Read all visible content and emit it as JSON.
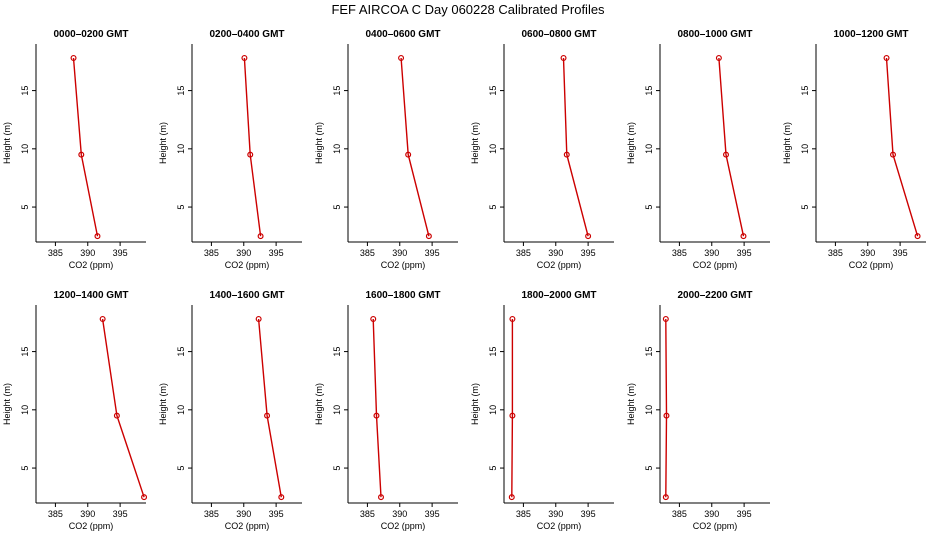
{
  "figure": {
    "title": "FEF AIRCOA C  Day 060228  Calibrated Profiles"
  },
  "colors": {
    "line": "#cc0000",
    "axes": "#000000",
    "background": "#ffffff"
  },
  "chart_data": [
    {
      "type": "line",
      "title": "0000–0200 GMT",
      "xlabel": "CO2 (ppm)",
      "ylabel": "Height (m)",
      "xlim": [
        382,
        399
      ],
      "ylim": [
        2,
        19
      ],
      "xticks": [
        385,
        390,
        395
      ],
      "yticks": [
        5,
        10,
        15
      ],
      "series": [
        {
          "x": [
            391.5,
            389.0,
            387.8
          ],
          "y": [
            2.5,
            9.5,
            17.8
          ]
        }
      ]
    },
    {
      "type": "line",
      "title": "0200–0400 GMT",
      "xlabel": "CO2 (ppm)",
      "ylabel": "Height (m)",
      "xlim": [
        382,
        399
      ],
      "ylim": [
        2,
        19
      ],
      "xticks": [
        385,
        390,
        395
      ],
      "yticks": [
        5,
        10,
        15
      ],
      "series": [
        {
          "x": [
            392.6,
            391.0,
            390.1
          ],
          "y": [
            2.5,
            9.5,
            17.8
          ]
        }
      ]
    },
    {
      "type": "line",
      "title": "0400–0600 GMT",
      "xlabel": "CO2 (ppm)",
      "ylabel": "Height (m)",
      "xlim": [
        382,
        399
      ],
      "ylim": [
        2,
        19
      ],
      "xticks": [
        385,
        390,
        395
      ],
      "yticks": [
        5,
        10,
        15
      ],
      "series": [
        {
          "x": [
            394.5,
            391.3,
            390.2
          ],
          "y": [
            2.5,
            9.5,
            17.8
          ]
        }
      ]
    },
    {
      "type": "line",
      "title": "0600–0800 GMT",
      "xlabel": "CO2 (ppm)",
      "ylabel": "Height (m)",
      "xlim": [
        382,
        399
      ],
      "ylim": [
        2,
        19
      ],
      "xticks": [
        385,
        390,
        395
      ],
      "yticks": [
        5,
        10,
        15
      ],
      "series": [
        {
          "x": [
            395.0,
            391.7,
            391.2
          ],
          "y": [
            2.5,
            9.5,
            17.8
          ]
        }
      ]
    },
    {
      "type": "line",
      "title": "0800–1000 GMT",
      "xlabel": "CO2 (ppm)",
      "ylabel": "Height (m)",
      "xlim": [
        382,
        399
      ],
      "ylim": [
        2,
        19
      ],
      "xticks": [
        385,
        390,
        395
      ],
      "yticks": [
        5,
        10,
        15
      ],
      "series": [
        {
          "x": [
            394.9,
            392.2,
            391.1
          ],
          "y": [
            2.5,
            9.5,
            17.8
          ]
        }
      ]
    },
    {
      "type": "line",
      "title": "1000–1200 GMT",
      "xlabel": "CO2 (ppm)",
      "ylabel": "Height (m)",
      "xlim": [
        382,
        399
      ],
      "ylim": [
        2,
        19
      ],
      "xticks": [
        385,
        390,
        395
      ],
      "yticks": [
        5,
        10,
        15
      ],
      "series": [
        {
          "x": [
            397.7,
            393.9,
            392.9
          ],
          "y": [
            2.5,
            9.5,
            17.8
          ]
        }
      ]
    },
    {
      "type": "line",
      "title": "1200–1400 GMT",
      "xlabel": "CO2 (ppm)",
      "ylabel": "Height (m)",
      "xlim": [
        382,
        399
      ],
      "ylim": [
        2,
        19
      ],
      "xticks": [
        385,
        390,
        395
      ],
      "yticks": [
        5,
        10,
        15
      ],
      "series": [
        {
          "x": [
            398.7,
            394.5,
            392.3
          ],
          "y": [
            2.5,
            9.5,
            17.8
          ]
        }
      ]
    },
    {
      "type": "line",
      "title": "1400–1600 GMT",
      "xlabel": "CO2 (ppm)",
      "ylabel": "Height (m)",
      "xlim": [
        382,
        399
      ],
      "ylim": [
        2,
        19
      ],
      "xticks": [
        385,
        390,
        395
      ],
      "yticks": [
        5,
        10,
        15
      ],
      "series": [
        {
          "x": [
            395.8,
            393.6,
            392.3
          ],
          "y": [
            2.5,
            9.5,
            17.8
          ]
        }
      ]
    },
    {
      "type": "line",
      "title": "1600–1800 GMT",
      "xlabel": "CO2 (ppm)",
      "ylabel": "Height (m)",
      "xlim": [
        382,
        399
      ],
      "ylim": [
        2,
        19
      ],
      "xticks": [
        385,
        390,
        395
      ],
      "yticks": [
        5,
        10,
        15
      ],
      "series": [
        {
          "x": [
            387.1,
            386.4,
            385.9
          ],
          "y": [
            2.5,
            9.5,
            17.8
          ]
        }
      ]
    },
    {
      "type": "line",
      "title": "1800–2000 GMT",
      "xlabel": "CO2 (ppm)",
      "ylabel": "Height (m)",
      "xlim": [
        382,
        399
      ],
      "ylim": [
        2,
        19
      ],
      "xticks": [
        385,
        390,
        395
      ],
      "yticks": [
        5,
        10,
        15
      ],
      "series": [
        {
          "x": [
            383.2,
            383.3,
            383.3
          ],
          "y": [
            2.5,
            9.5,
            17.8
          ]
        }
      ]
    },
    {
      "type": "line",
      "title": "2000–2200 GMT",
      "xlabel": "CO2 (ppm)",
      "ylabel": "Height (m)",
      "xlim": [
        382,
        399
      ],
      "ylim": [
        2,
        19
      ],
      "xticks": [
        385,
        390,
        395
      ],
      "yticks": [
        5,
        10,
        15
      ],
      "series": [
        {
          "x": [
            382.9,
            383.0,
            382.9
          ],
          "y": [
            2.5,
            9.5,
            17.8
          ]
        }
      ]
    }
  ]
}
